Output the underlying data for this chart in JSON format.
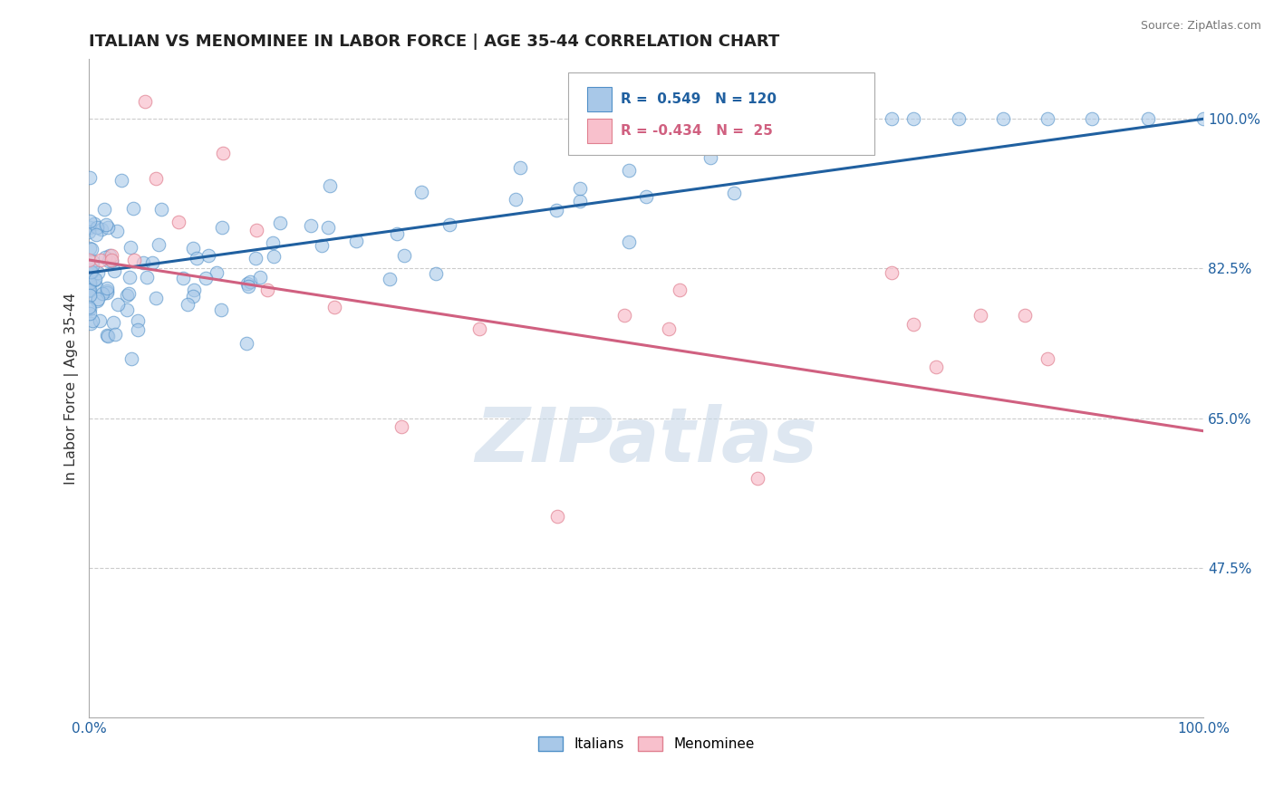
{
  "title": "ITALIAN VS MENOMINEE IN LABOR FORCE | AGE 35-44 CORRELATION CHART",
  "source": "Source: ZipAtlas.com",
  "ylabel": "In Labor Force | Age 35-44",
  "xlim": [
    0.0,
    1.0
  ],
  "ylim": [
    0.3,
    1.07
  ],
  "yticks": [
    0.475,
    0.65,
    0.825,
    1.0
  ],
  "ytick_labels": [
    "47.5%",
    "65.0%",
    "82.5%",
    "100.0%"
  ],
  "xtick_labels": [
    "0.0%",
    "100.0%"
  ],
  "xticks": [
    0.0,
    1.0
  ],
  "R_italian": 0.549,
  "N_italian": 120,
  "R_menominee": -0.434,
  "N_menominee": 25,
  "italian_color": "#a8c8e8",
  "italian_edge_color": "#5090c8",
  "italian_line_color": "#2060a0",
  "menominee_color": "#f8c0cc",
  "menominee_edge_color": "#e08090",
  "menominee_line_color": "#d06080",
  "watermark": "ZIPatlas",
  "watermark_color": "#c8d8e8",
  "background_color": "#ffffff",
  "grid_color": "#cccccc",
  "title_fontsize": 13,
  "italian_intercept": 0.82,
  "italian_slope": 0.18,
  "menominee_intercept": 0.835,
  "menominee_slope": -0.2
}
